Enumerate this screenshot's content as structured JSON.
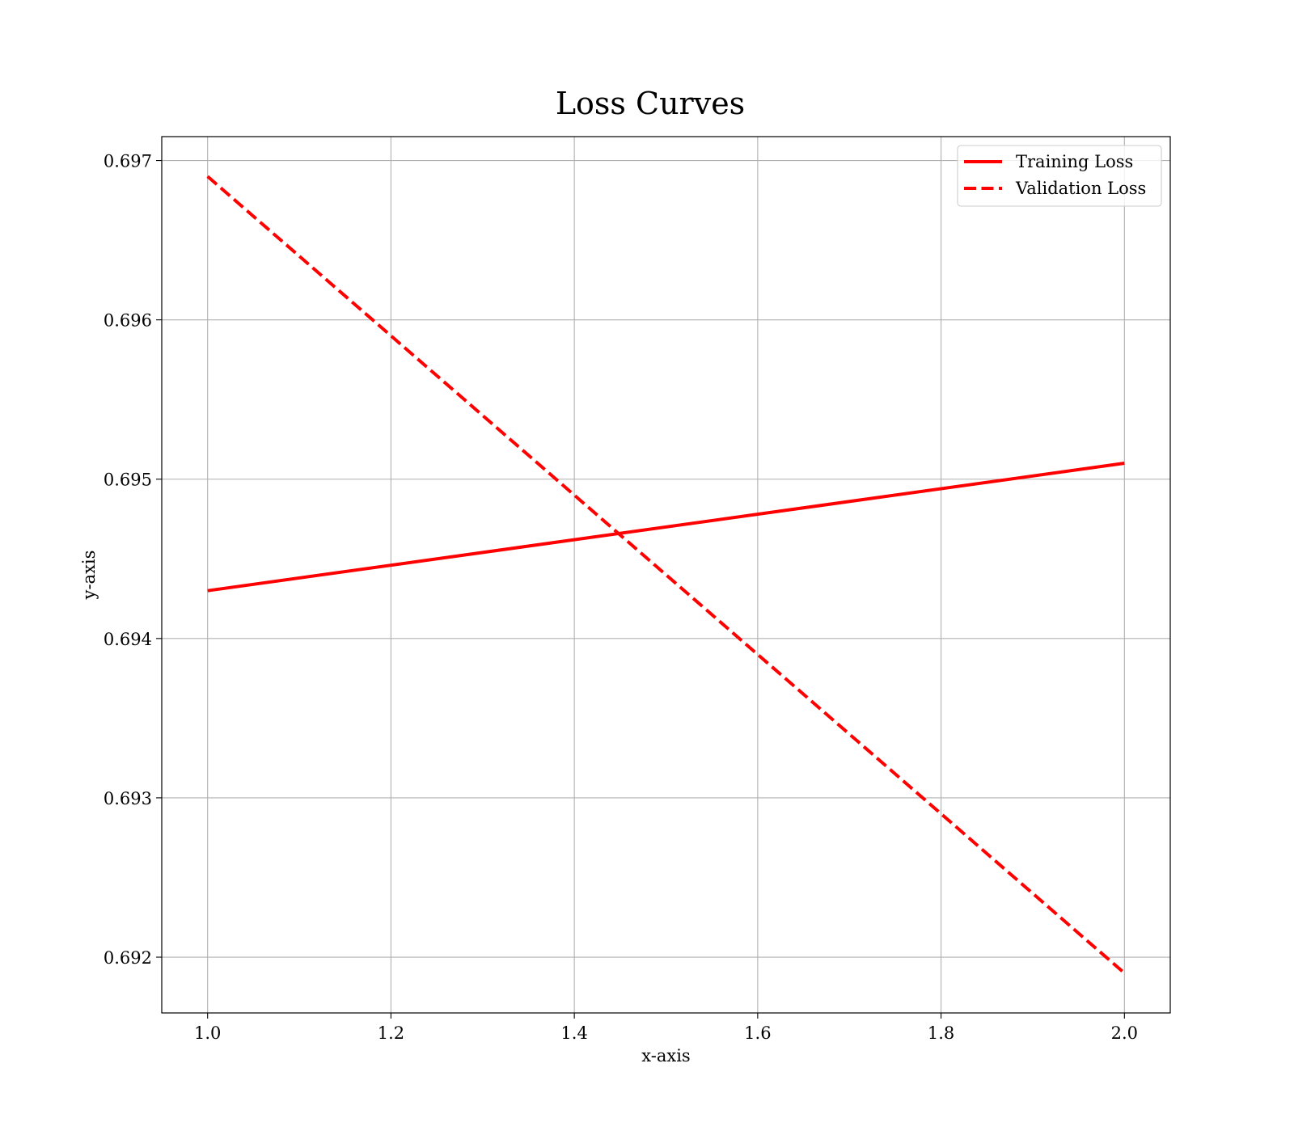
{
  "chart_data": {
    "type": "line",
    "title": "Loss Curves",
    "xlabel": "x-axis",
    "ylabel": "y-axis",
    "x": [
      1.0,
      2.0
    ],
    "xlim": [
      0.95,
      2.05
    ],
    "ylim": [
      0.69165,
      0.69715
    ],
    "xticks": [
      1.0,
      1.2,
      1.4,
      1.6,
      1.8,
      2.0
    ],
    "xtick_labels": [
      "1.0",
      "1.2",
      "1.4",
      "1.6",
      "1.8",
      "2.0"
    ],
    "yticks": [
      0.692,
      0.693,
      0.694,
      0.695,
      0.696,
      0.697
    ],
    "ytick_labels": [
      "0.692",
      "0.693",
      "0.694",
      "0.695",
      "0.696",
      "0.697"
    ],
    "grid": true,
    "legend_position": "top-right",
    "series": [
      {
        "name": "Training Loss",
        "values": [
          0.6943,
          0.6951
        ],
        "color": "#ff0000",
        "style": "solid"
      },
      {
        "name": "Validation Loss",
        "values": [
          0.6969,
          0.6919
        ],
        "color": "#ff0000",
        "style": "dashed"
      }
    ]
  }
}
